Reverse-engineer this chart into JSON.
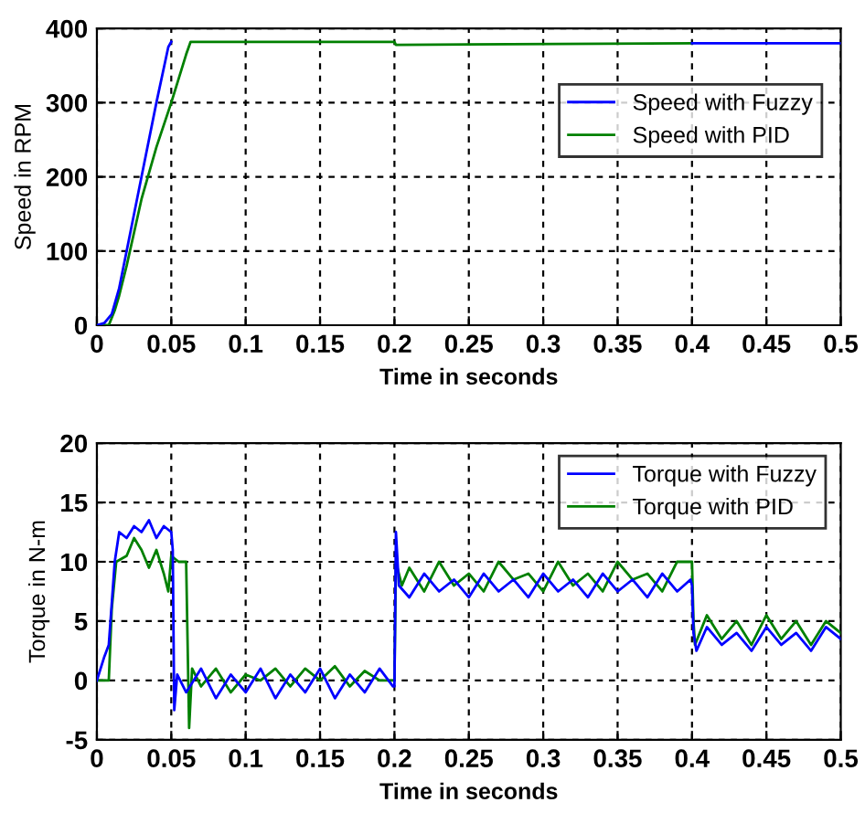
{
  "chart_data": [
    {
      "type": "line",
      "xlabel": "Time in seconds",
      "ylabel": "Speed in RPM",
      "xlim": [
        0,
        0.5
      ],
      "ylim": [
        0,
        400
      ],
      "xticks": [
        0,
        0.05,
        0.1,
        0.15,
        0.2,
        0.25,
        0.3,
        0.35,
        0.4,
        0.45,
        0.5
      ],
      "yticks": [
        0,
        100,
        200,
        300,
        400
      ],
      "grid": true,
      "legend": "top right",
      "line_style": "solid",
      "series": [
        {
          "name": "Speed with Fuzzy",
          "color": "#0000ff",
          "x": [
            0,
            0.005,
            0.01,
            0.015,
            0.02,
            0.03,
            0.04,
            0.048,
            0.05,
            0.2,
            0.4,
            0.5
          ],
          "values": [
            0,
            3,
            15,
            50,
            100,
            200,
            300,
            375,
            382,
            null,
            380,
            380
          ]
        },
        {
          "name": "Speed with PID",
          "color": "#008000",
          "x": [
            0,
            0.008,
            0.012,
            0.015,
            0.02,
            0.03,
            0.04,
            0.05,
            0.06,
            0.063,
            0.2,
            0.201,
            0.4
          ],
          "values": [
            0,
            0,
            20,
            40,
            80,
            170,
            240,
            300,
            365,
            382,
            382,
            378,
            380
          ]
        }
      ]
    },
    {
      "type": "line",
      "xlabel": "Time in seconds",
      "ylabel": "Torque in N-m",
      "xlim": [
        0,
        0.5
      ],
      "ylim": [
        -5,
        20
      ],
      "xticks": [
        0,
        0.05,
        0.1,
        0.15,
        0.2,
        0.25,
        0.3,
        0.35,
        0.4,
        0.45,
        0.5
      ],
      "yticks": [
        -5,
        0,
        5,
        10,
        15,
        20
      ],
      "grid": true,
      "legend": "top right",
      "line_style": "solid",
      "series": [
        {
          "name": "Torque with Fuzzy",
          "color": "#0000ff",
          "x": [
            0,
            0.005,
            0.008,
            0.012,
            0.015,
            0.02,
            0.025,
            0.03,
            0.035,
            0.04,
            0.045,
            0.05,
            0.051,
            0.052,
            0.054,
            0.06,
            0.07,
            0.08,
            0.09,
            0.1,
            0.11,
            0.12,
            0.13,
            0.14,
            0.15,
            0.16,
            0.17,
            0.18,
            0.19,
            0.199,
            0.2,
            0.201,
            0.203,
            0.21,
            0.22,
            0.23,
            0.24,
            0.25,
            0.26,
            0.27,
            0.28,
            0.29,
            0.3,
            0.31,
            0.32,
            0.33,
            0.34,
            0.35,
            0.36,
            0.37,
            0.38,
            0.39,
            0.399,
            0.4,
            0.401,
            0.403,
            0.41,
            0.42,
            0.43,
            0.44,
            0.45,
            0.46,
            0.47,
            0.48,
            0.49,
            0.5
          ],
          "values": [
            0,
            2,
            3,
            10,
            12.5,
            12,
            13,
            12.5,
            13.5,
            12,
            13,
            12.5,
            11,
            -2.5,
            0.5,
            -1,
            1,
            -1.5,
            0.5,
            -1,
            1,
            -1.5,
            0.5,
            -1,
            1,
            -1.5,
            0.5,
            -1,
            1,
            -0.5,
            -0.5,
            12.5,
            8,
            7,
            9,
            7.5,
            8.5,
            7,
            9,
            7.5,
            8.5,
            7,
            9,
            7.5,
            8.5,
            7,
            9,
            7.5,
            8.5,
            7,
            9,
            7.5,
            8.5,
            8,
            4,
            2.5,
            4.5,
            3,
            4,
            2.5,
            4.5,
            3,
            4,
            2.5,
            4.5,
            3.5
          ]
        },
        {
          "name": "Torque with PID",
          "color": "#008000",
          "x": [
            0,
            0.008,
            0.01,
            0.013,
            0.02,
            0.025,
            0.03,
            0.035,
            0.04,
            0.045,
            0.048,
            0.05,
            0.055,
            0.06,
            0.062,
            0.064,
            0.07,
            0.08,
            0.09,
            0.1,
            0.11,
            0.12,
            0.13,
            0.14,
            0.15,
            0.16,
            0.17,
            0.18,
            0.19,
            0.2,
            0.201,
            0.205,
            0.21,
            0.22,
            0.23,
            0.24,
            0.25,
            0.26,
            0.27,
            0.28,
            0.29,
            0.3,
            0.31,
            0.32,
            0.33,
            0.34,
            0.35,
            0.36,
            0.37,
            0.38,
            0.39,
            0.4,
            0.401,
            0.402,
            0.41,
            0.42,
            0.43,
            0.44,
            0.45,
            0.46,
            0.47,
            0.48,
            0.49,
            0.5
          ],
          "values": [
            0,
            0,
            6,
            10,
            10.5,
            12,
            11,
            9.5,
            11,
            9,
            7.5,
            10.5,
            10,
            10,
            -4,
            1,
            -0.5,
            1,
            -1,
            0.5,
            0,
            1,
            -0.5,
            1,
            0,
            1.2,
            -0.5,
            0.8,
            0,
            0,
            10,
            8,
            9.5,
            7.5,
            10,
            8,
            9,
            7.5,
            10,
            8.5,
            9,
            7.5,
            10,
            8,
            9,
            7.5,
            10,
            8.5,
            9,
            7.5,
            10,
            10,
            5,
            3,
            5.5,
            3.5,
            5,
            3,
            5.5,
            3.5,
            5,
            3,
            5,
            4
          ]
        }
      ]
    }
  ]
}
